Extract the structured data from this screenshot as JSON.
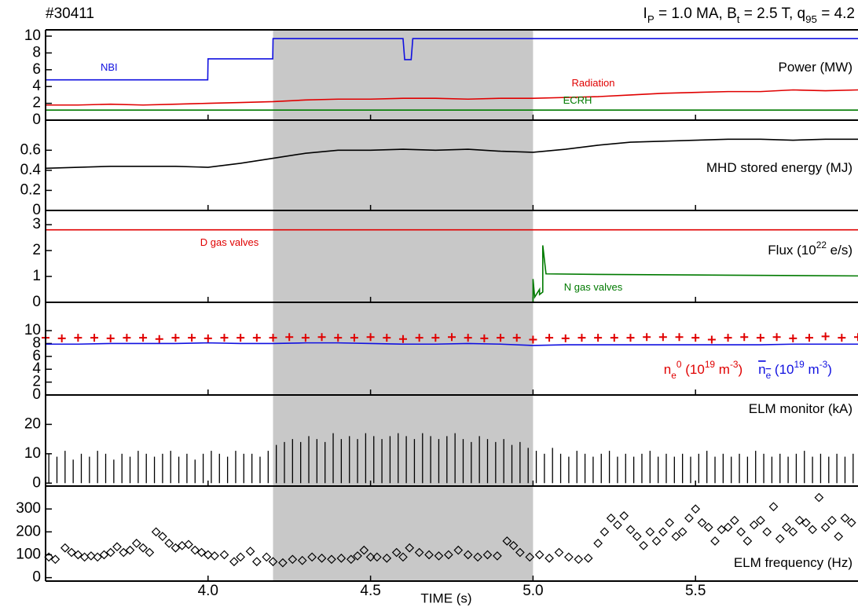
{
  "header": {
    "shot": "#30411",
    "params": [
      {
        "t": "I"
      },
      {
        "sub": "P"
      },
      {
        "t": " = 1.0 MA, B"
      },
      {
        "sub": "t"
      },
      {
        "t": " = 2.5 T, q"
      },
      {
        "sub": "95"
      },
      {
        "t": " = 4.2"
      }
    ]
  },
  "x_axis": {
    "xlim": [
      3.5,
      6.0
    ],
    "xticks": [
      {
        "value": 4,
        "label": "4.0"
      },
      4.5,
      {
        "value": 5,
        "label": "5.0"
      },
      5.5
    ],
    "xlabel": "TIME (s)",
    "highlight": [
      4.2,
      5.0
    ],
    "highlight_color": "#c8c8c8"
  },
  "chart_data": [
    {
      "type": "line",
      "label": [
        {
          "t": "Power (MW)"
        }
      ],
      "ylim": [
        0,
        10.75
      ],
      "yticks": [
        0,
        2,
        4,
        6,
        8,
        10
      ],
      "series": [
        {
          "name": [
            {
              "t": "NBI"
            }
          ],
          "color": "#1010e0",
          "x": [
            3.5,
            3.999,
            4.0,
            4.199,
            4.2,
            4.6,
            4.605,
            4.625,
            4.63,
            6.0
          ],
          "values": [
            4.8,
            4.8,
            7.3,
            7.3,
            9.7,
            9.7,
            7.2,
            7.2,
            9.7,
            9.7
          ]
        },
        {
          "name": [
            {
              "t": "Radiation"
            }
          ],
          "color": "#e00000",
          "x": [
            3.5,
            3.6,
            3.7,
            3.8,
            3.9,
            4.0,
            4.1,
            4.2,
            4.3,
            4.4,
            4.5,
            4.6,
            4.7,
            4.8,
            4.9,
            5.0,
            5.1,
            5.2,
            5.3,
            5.4,
            5.5,
            5.6,
            5.7,
            5.8,
            5.9,
            6.0
          ],
          "values": [
            1.8,
            1.8,
            1.9,
            1.8,
            1.9,
            2.0,
            2.1,
            2.2,
            2.4,
            2.5,
            2.5,
            2.6,
            2.6,
            2.5,
            2.6,
            2.6,
            2.7,
            2.8,
            3.0,
            3.2,
            3.3,
            3.4,
            3.4,
            3.6,
            3.5,
            3.6
          ]
        },
        {
          "name": [
            {
              "t": "ECRH"
            }
          ],
          "color": "#007a00",
          "x": [
            3.5,
            6.0
          ],
          "values": [
            1.2,
            1.2
          ]
        }
      ]
    },
    {
      "type": "line",
      "label": [
        {
          "t": "MHD stored energy (MJ)"
        }
      ],
      "ylim": [
        0,
        0.9
      ],
      "yticks": [
        0,
        0.2,
        0.4,
        0.6
      ],
      "series": [
        {
          "color": "#000000",
          "x": [
            3.5,
            3.6,
            3.7,
            3.8,
            3.9,
            4.0,
            4.1,
            4.2,
            4.3,
            4.4,
            4.5,
            4.6,
            4.7,
            4.8,
            4.9,
            5.0,
            5.1,
            5.2,
            5.3,
            5.4,
            5.5,
            5.6,
            5.7,
            5.8,
            5.9,
            6.0
          ],
          "values": [
            0.42,
            0.43,
            0.44,
            0.44,
            0.44,
            0.43,
            0.47,
            0.52,
            0.57,
            0.6,
            0.6,
            0.61,
            0.6,
            0.61,
            0.59,
            0.58,
            0.61,
            0.65,
            0.68,
            0.69,
            0.7,
            0.71,
            0.71,
            0.7,
            0.71,
            0.71
          ]
        }
      ]
    },
    {
      "type": "line",
      "label": [
        {
          "t": "Flux (10"
        },
        {
          "sup": "22"
        },
        {
          "t": " e/s)"
        }
      ],
      "ylim": [
        0,
        3.55
      ],
      "yticks": [
        0,
        1,
        2,
        3
      ],
      "series": [
        {
          "name": [
            {
              "t": "D gas valves"
            }
          ],
          "color": "#e00000",
          "x": [
            3.5,
            6.0
          ],
          "values": [
            2.8,
            2.8
          ]
        },
        {
          "name": [
            {
              "t": "N gas valves"
            }
          ],
          "color": "#007a00",
          "x": [
            4.25,
            5.0,
            5.0,
            5.005,
            5.01,
            5.02,
            5.02,
            5.03,
            5.03,
            5.04,
            5.2,
            5.6,
            6.0
          ],
          "values": [
            0,
            0,
            0.9,
            0.2,
            0.3,
            0.5,
            0.3,
            0.4,
            2.2,
            1.1,
            1.08,
            1.05,
            1.02
          ]
        }
      ]
    },
    {
      "type": "line",
      "ylim": [
        0,
        14.4
      ],
      "yticks": [
        0,
        2,
        4,
        6,
        8,
        10
      ],
      "series": [
        {
          "name": [
            {
              "t": "n"
            },
            {
              "sub": "e"
            },
            {
              "sup": "0"
            },
            {
              "t": " (10"
            },
            {
              "sup": "19"
            },
            {
              "t": " m"
            },
            {
              "sup": "-3"
            },
            {
              "t": ")"
            }
          ],
          "color": "#e00000",
          "marker": "+",
          "x": [
            3.5,
            3.55,
            3.6,
            3.65,
            3.7,
            3.75,
            3.8,
            3.85,
            3.9,
            3.95,
            4.0,
            4.05,
            4.1,
            4.15,
            4.2,
            4.25,
            4.3,
            4.35,
            4.4,
            4.45,
            4.5,
            4.55,
            4.6,
            4.65,
            4.7,
            4.75,
            4.8,
            4.85,
            4.9,
            4.95,
            5.0,
            5.05,
            5.1,
            5.15,
            5.2,
            5.25,
            5.3,
            5.35,
            5.4,
            5.45,
            5.5,
            5.55,
            5.6,
            5.65,
            5.7,
            5.75,
            5.8,
            5.85,
            5.9,
            5.95,
            6.0
          ],
          "values": [
            8.9,
            8.8,
            8.9,
            8.9,
            8.8,
            8.9,
            8.9,
            8.7,
            8.9,
            8.9,
            8.8,
            8.9,
            8.9,
            8.9,
            8.9,
            9.0,
            8.9,
            9.0,
            8.9,
            8.9,
            9.0,
            8.9,
            8.7,
            8.9,
            8.9,
            9.0,
            8.9,
            8.8,
            8.9,
            8.9,
            8.6,
            8.9,
            8.8,
            8.9,
            8.9,
            8.9,
            8.9,
            9.0,
            9.0,
            9.0,
            8.9,
            8.6,
            8.9,
            9.0,
            8.9,
            9.0,
            8.8,
            8.9,
            9.1,
            8.9,
            9.0
          ]
        },
        {
          "name": [
            {
              "ovr": "n"
            },
            {
              "ovrsub": "e"
            },
            {
              "t": " (10"
            },
            {
              "sup": "19"
            },
            {
              "t": " m"
            },
            {
              "sup": "-3"
            },
            {
              "t": ")"
            }
          ],
          "color": "#1010e0",
          "x": [
            3.5,
            3.6,
            3.7,
            3.8,
            3.9,
            4.0,
            4.1,
            4.2,
            4.3,
            4.4,
            4.5,
            4.6,
            4.7,
            4.8,
            4.9,
            5.0,
            5.1,
            5.2,
            5.3,
            5.4,
            5.5,
            5.6,
            5.7,
            5.8,
            5.9,
            6.0
          ],
          "values": [
            7.9,
            7.9,
            8.0,
            8.0,
            8.0,
            8.1,
            8.0,
            8.0,
            8.1,
            8.1,
            8.0,
            7.9,
            7.9,
            8.0,
            7.9,
            7.7,
            7.8,
            7.8,
            7.8,
            7.8,
            7.8,
            7.8,
            7.8,
            7.9,
            7.9,
            7.9
          ]
        }
      ]
    },
    {
      "type": "stem",
      "label": [
        {
          "t": "ELM monitor (kA)"
        }
      ],
      "ylim": [
        -1,
        30
      ],
      "yticks": [
        0,
        10,
        20
      ],
      "series": [
        {
          "color": "#000000",
          "x": [
            3.51,
            3.535,
            3.56,
            3.585,
            3.61,
            3.635,
            3.66,
            3.685,
            3.71,
            3.735,
            3.76,
            3.785,
            3.81,
            3.835,
            3.86,
            3.885,
            3.91,
            3.935,
            3.96,
            3.985,
            4.01,
            4.035,
            4.06,
            4.085,
            4.11,
            4.135,
            4.16,
            4.185,
            4.21,
            4.235,
            4.26,
            4.285,
            4.31,
            4.335,
            4.36,
            4.385,
            4.41,
            4.435,
            4.46,
            4.485,
            4.51,
            4.535,
            4.56,
            4.585,
            4.61,
            4.635,
            4.66,
            4.685,
            4.71,
            4.735,
            4.76,
            4.785,
            4.81,
            4.835,
            4.86,
            4.885,
            4.91,
            4.935,
            4.96,
            4.985,
            5.01,
            5.035,
            5.06,
            5.085,
            5.11,
            5.135,
            5.16,
            5.185,
            5.21,
            5.235,
            5.26,
            5.285,
            5.31,
            5.335,
            5.36,
            5.385,
            5.41,
            5.435,
            5.46,
            5.485,
            5.51,
            5.535,
            5.56,
            5.585,
            5.61,
            5.635,
            5.66,
            5.685,
            5.71,
            5.735,
            5.76,
            5.785,
            5.81,
            5.835,
            5.86,
            5.885,
            5.91,
            5.935,
            5.96,
            5.985
          ],
          "values": [
            10,
            9,
            11,
            8,
            10,
            9,
            11,
            10,
            8,
            10,
            9,
            11,
            10,
            9,
            10,
            11,
            9,
            10,
            8,
            10,
            11,
            10,
            9,
            11,
            10,
            10,
            9,
            11,
            13,
            14,
            15,
            14,
            16,
            15,
            14,
            17,
            15,
            16,
            15,
            17,
            16,
            15,
            16,
            17,
            16,
            15,
            17,
            16,
            15,
            16,
            17,
            15,
            14,
            16,
            15,
            14,
            15,
            13,
            14,
            12,
            11,
            10,
            12,
            10,
            9,
            11,
            10,
            9,
            10,
            11,
            9,
            10,
            9,
            10,
            11,
            9,
            10,
            9,
            10,
            9,
            10,
            11,
            9,
            10,
            9,
            10,
            9,
            11,
            10,
            9,
            10,
            9,
            10,
            11,
            9,
            10,
            9,
            10,
            9,
            10
          ]
        }
      ]
    },
    {
      "type": "scatter",
      "label": [
        {
          "t": "ELM frequency (Hz)"
        }
      ],
      "ylim": [
        -15,
        400
      ],
      "yticks": [
        0,
        100,
        200,
        300
      ],
      "series": [
        {
          "color": "#000000",
          "x": [
            3.51,
            3.53,
            3.56,
            3.58,
            3.6,
            3.62,
            3.64,
            3.66,
            3.68,
            3.7,
            3.72,
            3.74,
            3.76,
            3.78,
            3.8,
            3.82,
            3.84,
            3.86,
            3.88,
            3.9,
            3.92,
            3.94,
            3.96,
            3.98,
            4.0,
            4.02,
            4.05,
            4.08,
            4.1,
            4.13,
            4.15,
            4.18,
            4.2,
            4.23,
            4.26,
            4.29,
            4.32,
            4.35,
            4.38,
            4.41,
            4.44,
            4.46,
            4.48,
            4.5,
            4.52,
            4.55,
            4.58,
            4.6,
            4.62,
            4.65,
            4.68,
            4.71,
            4.74,
            4.77,
            4.8,
            4.83,
            4.86,
            4.89,
            4.92,
            4.94,
            4.96,
            4.99,
            5.02,
            5.05,
            5.08,
            5.11,
            5.14,
            5.17,
            5.2,
            5.22,
            5.24,
            5.26,
            5.28,
            5.3,
            5.32,
            5.34,
            5.36,
            5.38,
            5.4,
            5.42,
            5.44,
            5.46,
            5.48,
            5.5,
            5.52,
            5.54,
            5.56,
            5.58,
            5.6,
            5.62,
            5.64,
            5.66,
            5.68,
            5.7,
            5.72,
            5.74,
            5.76,
            5.78,
            5.8,
            5.82,
            5.84,
            5.86,
            5.88,
            5.9,
            5.92,
            5.94,
            5.96,
            5.98
          ],
          "values": [
            90,
            80,
            130,
            110,
            100,
            90,
            95,
            90,
            100,
            110,
            135,
            110,
            120,
            150,
            130,
            110,
            200,
            180,
            150,
            130,
            140,
            145,
            120,
            110,
            100,
            95,
            100,
            70,
            90,
            115,
            70,
            90,
            70,
            65,
            80,
            75,
            90,
            85,
            80,
            85,
            80,
            95,
            120,
            90,
            90,
            85,
            110,
            90,
            130,
            110,
            100,
            95,
            100,
            120,
            100,
            90,
            100,
            95,
            160,
            140,
            110,
            90,
            100,
            85,
            110,
            90,
            80,
            85,
            150,
            200,
            260,
            230,
            270,
            210,
            180,
            140,
            200,
            160,
            200,
            240,
            180,
            200,
            260,
            300,
            240,
            220,
            160,
            210,
            220,
            250,
            200,
            160,
            230,
            250,
            200,
            310,
            170,
            220,
            200,
            250,
            240,
            210,
            350,
            220,
            250,
            180,
            260,
            240
          ]
        }
      ]
    }
  ]
}
